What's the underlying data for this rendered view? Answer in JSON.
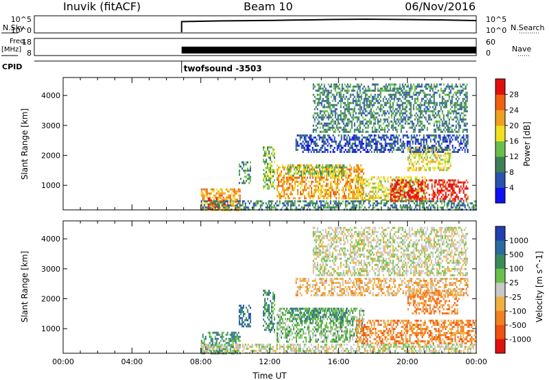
{
  "header": {
    "site": "Inuvik (fitACF)",
    "beam": "Beam 10",
    "date": "06/Nov/2016"
  },
  "top_panels": {
    "nsky": {
      "left_label": "N.Sky",
      "right_label": "N.Search",
      "left_ticks": [
        "10^5",
        "10^0"
      ],
      "right_ticks": [
        "10^5",
        "10^0"
      ],
      "start_hour": 8,
      "trace": [
        [
          8.0,
          0.34
        ],
        [
          9.0,
          0.32
        ],
        [
          10.0,
          0.3
        ],
        [
          11.0,
          0.29
        ],
        [
          12.0,
          0.28
        ],
        [
          13.0,
          0.27
        ],
        [
          14.0,
          0.25
        ],
        [
          15.0,
          0.24
        ],
        [
          16.0,
          0.22
        ],
        [
          17.0,
          0.21
        ],
        [
          18.0,
          0.2
        ],
        [
          19.0,
          0.21
        ],
        [
          20.0,
          0.22
        ],
        [
          21.0,
          0.23
        ],
        [
          22.0,
          0.24
        ],
        [
          23.0,
          0.26
        ],
        [
          24.0,
          0.28
        ]
      ]
    },
    "freq": {
      "left_label_line1": "Freq.",
      "left_label_line2": "[MHz]",
      "right_label": "Nave",
      "left_ticks": [
        "18",
        "8"
      ],
      "right_ticks": [
        "60",
        "0"
      ],
      "start_hour": 8
    },
    "cpid": {
      "label": "CPID",
      "text": "twofsound -3503",
      "start_hour": 8
    }
  },
  "colorbars": {
    "power": {
      "title": "Power [dB]",
      "ticks": [
        "4",
        "8",
        "12",
        "16",
        "20",
        "24",
        "28"
      ],
      "colors": [
        "#1010f0",
        "#2a52b0",
        "#3c7f5a",
        "#6abf4a",
        "#f0e020",
        "#f0a020",
        "#f06010",
        "#e01010"
      ]
    },
    "velocity": {
      "title": "Velocity [m s^-1]",
      "ticks": [
        "1000",
        "500",
        "100",
        "25",
        "-25",
        "-100",
        "-500",
        "-1000"
      ],
      "colors": [
        "#2040b0",
        "#2a6aa0",
        "#3a8a5a",
        "#6ac04a",
        "#c8c8c8",
        "#f0b040",
        "#f08020",
        "#f05010",
        "#e01010"
      ]
    }
  },
  "chart_data": [
    {
      "type": "heatmap",
      "name": "power",
      "title": "",
      "xlabel": "",
      "ylabel": "Slant Range [km]",
      "xlim": [
        0,
        24
      ],
      "ylim": [
        180,
        4600
      ],
      "yticks": [
        "1000",
        "2000",
        "3000",
        "4000"
      ],
      "colorbar_label": "Power [dB]",
      "colorbar_ticks": [
        4,
        8,
        12,
        16,
        20,
        24,
        28
      ],
      "blobs": [
        {
          "x0": 8.0,
          "x1": 10.3,
          "y0": 200,
          "y1": 900,
          "level": 5
        },
        {
          "x0": 8.4,
          "x1": 9.4,
          "y0": 220,
          "y1": 600,
          "level": 7
        },
        {
          "x0": 10.2,
          "x1": 10.9,
          "y0": 1100,
          "y1": 1800,
          "level": 2
        },
        {
          "x0": 11.6,
          "x1": 12.3,
          "y0": 900,
          "y1": 2300,
          "level": 3
        },
        {
          "x0": 12.4,
          "x1": 17.5,
          "y0": 600,
          "y1": 1700,
          "level": 5
        },
        {
          "x0": 13.0,
          "x1": 16.5,
          "y0": 1300,
          "y1": 1700,
          "level": 3
        },
        {
          "x0": 17.0,
          "x1": 21.0,
          "y0": 500,
          "y1": 1300,
          "level": 4
        },
        {
          "x0": 19.0,
          "x1": 23.5,
          "y0": 500,
          "y1": 1200,
          "level": 7
        },
        {
          "x0": 20.0,
          "x1": 22.5,
          "y0": 1500,
          "y1": 2300,
          "level": 4
        },
        {
          "x0": 13.5,
          "x1": 23.5,
          "y0": 2100,
          "y1": 2700,
          "level": 1
        },
        {
          "x0": 8.0,
          "x1": 24.0,
          "y0": 200,
          "y1": 500,
          "level": 2
        },
        {
          "x0": 14.5,
          "x1": 23.5,
          "y0": 2800,
          "y1": 4400,
          "level": 2
        }
      ]
    },
    {
      "type": "heatmap",
      "name": "velocity",
      "title": "",
      "xlabel": "Time UT",
      "ylabel": "Slant Range [km]",
      "xlim": [
        0,
        24
      ],
      "ylim": [
        180,
        4600
      ],
      "xticks": [
        "00:00",
        "04:00",
        "08:00",
        "12:00",
        "16:00",
        "20:00",
        "00:00"
      ],
      "yticks": [
        "1000",
        "2000",
        "3000",
        "4000"
      ],
      "colorbar_label": "Velocity [m s^-1]",
      "colorbar_ticks": [
        1000,
        500,
        100,
        25,
        -25,
        -100,
        -500,
        -1000
      ],
      "blobs": [
        {
          "x0": 8.0,
          "x1": 10.3,
          "y0": 200,
          "y1": 900,
          "level": 2
        },
        {
          "x0": 10.2,
          "x1": 10.9,
          "y0": 1100,
          "y1": 1800,
          "level": 1
        },
        {
          "x0": 11.6,
          "x1": 12.3,
          "y0": 900,
          "y1": 2300,
          "level": 2
        },
        {
          "x0": 12.4,
          "x1": 17.5,
          "y0": 600,
          "y1": 1700,
          "level": 3
        },
        {
          "x0": 13.0,
          "x1": 16.5,
          "y0": 1300,
          "y1": 1700,
          "level": 2
        },
        {
          "x0": 17.0,
          "x1": 24.0,
          "y0": 500,
          "y1": 1300,
          "level": 6
        },
        {
          "x0": 20.0,
          "x1": 23.0,
          "y0": 1500,
          "y1": 2300,
          "level": 6
        },
        {
          "x0": 13.5,
          "x1": 23.5,
          "y0": 2100,
          "y1": 2700,
          "level": 5
        },
        {
          "x0": 8.0,
          "x1": 24.0,
          "y0": 200,
          "y1": 500,
          "level": 4
        },
        {
          "x0": 14.5,
          "x1": 23.5,
          "y0": 2800,
          "y1": 4400,
          "level": 4
        }
      ]
    }
  ]
}
